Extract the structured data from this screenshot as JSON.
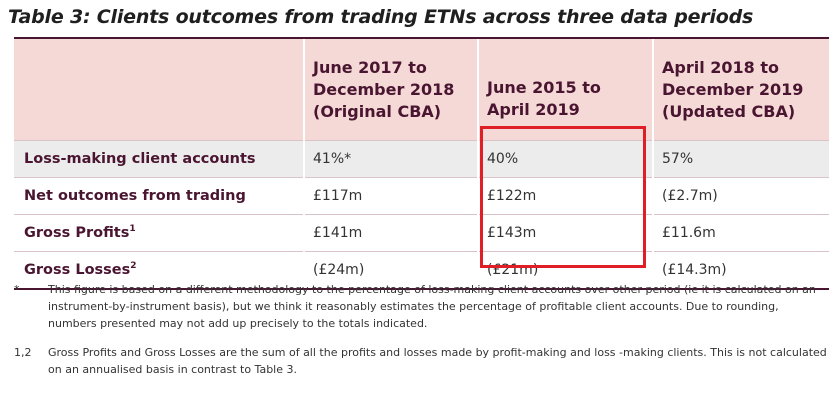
{
  "title": "Table 3: Clients outcomes from trading ETNs across three data periods",
  "columns": [
    {
      "line1": "June 2017 to",
      "line2": "December 2018",
      "line3": "(Original CBA)"
    },
    {
      "line1": "June 2015 to",
      "line2": "April 2019",
      "line3": ""
    },
    {
      "line1": "April 2018 to",
      "line2": "December 2019",
      "line3": "(Updated CBA)"
    }
  ],
  "rows": [
    {
      "label": "Loss-making client accounts",
      "sup": "",
      "values": [
        "41%*",
        "40%",
        "57%"
      ]
    },
    {
      "label": "Net outcomes from trading",
      "sup": "",
      "values": [
        "£117m",
        "£122m",
        "(£2.7m)"
      ]
    },
    {
      "label": "Gross Profits",
      "sup": "1",
      "values": [
        "£141m",
        "£143m",
        "£11.6m"
      ]
    },
    {
      "label": "Gross Losses",
      "sup": "2",
      "values": [
        "(£24m)",
        "(£21m)",
        "(£14.3m)"
      ]
    }
  ],
  "footnotes": [
    {
      "mark": "*",
      "text": "This figure is based on a different methodology to the percentage of loss-making client accounts over other period (ie it is calculated on an instrument-by-instrument basis), but we think it reasonably estimates the percentage of profitable client accounts. Due to rounding, numbers presented may not add up precisely to the totals indicated."
    },
    {
      "mark": "1,2",
      "text": "Gross Profits and Gross Losses are the sum of all the profits and losses made by profit-making and loss -making clients. This is not calculated on an annualised basis in contrast to Table 3."
    }
  ],
  "colors": {
    "header_bg": "#f4d9d6",
    "accent": "#4a1530",
    "highlight": "#e01e26",
    "shade_bg": "#ececec"
  }
}
